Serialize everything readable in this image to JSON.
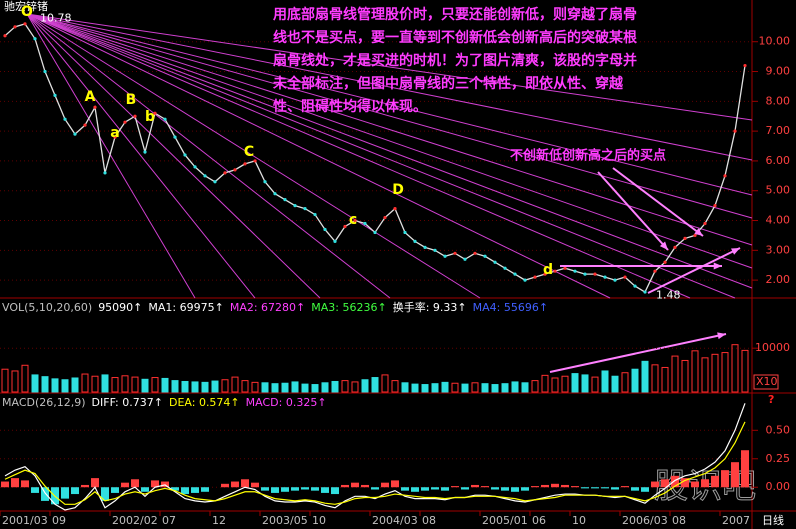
{
  "chart_data": [
    {
      "type": "line",
      "title": "驰宏锌锗",
      "color": "#e0e0e0",
      "categories": [
        "2001/03",
        null,
        null,
        null,
        null,
        "09",
        null,
        null,
        null,
        null,
        null,
        "2002/02",
        null,
        null,
        null,
        null,
        "07",
        null,
        null,
        null,
        null,
        "12",
        null,
        null,
        null,
        null,
        "2003/05",
        null,
        null,
        null,
        null,
        "10",
        null,
        null,
        null,
        null,
        null,
        "2004/03",
        null,
        null,
        null,
        null,
        "08",
        null,
        null,
        null,
        null,
        null,
        "2005/01",
        null,
        null,
        null,
        null,
        "06",
        null,
        null,
        null,
        "10",
        null,
        null,
        null,
        null,
        "2006/03",
        null,
        null,
        null,
        null,
        "08",
        null,
        null,
        null,
        null,
        "2007",
        null,
        null
      ],
      "values": [
        10.2,
        10.5,
        10.6,
        10.1,
        9.0,
        8.2,
        7.4,
        6.9,
        7.2,
        7.8,
        5.6,
        6.8,
        7.3,
        7.5,
        6.3,
        7.6,
        7.4,
        6.8,
        6.2,
        5.8,
        5.5,
        5.3,
        5.6,
        5.7,
        5.9,
        6.0,
        5.3,
        4.9,
        4.7,
        4.5,
        4.4,
        4.2,
        3.7,
        3.3,
        3.8,
        4.0,
        3.9,
        3.6,
        4.1,
        4.4,
        3.6,
        3.3,
        3.1,
        3.0,
        2.8,
        2.9,
        2.7,
        2.9,
        2.8,
        2.6,
        2.4,
        2.2,
        2.0,
        2.1,
        2.2,
        2.3,
        2.4,
        2.3,
        2.2,
        2.2,
        2.1,
        2.0,
        2.1,
        1.8,
        1.6,
        2.3,
        2.6,
        3.1,
        3.4,
        3.5,
        3.9,
        4.5,
        5.5,
        7.0,
        9.2
      ],
      "ylim": [
        1.4,
        11.4
      ],
      "yticks": [
        {
          "value": 2,
          "label": "2.00"
        },
        {
          "value": 3,
          "label": "3.00"
        },
        {
          "value": 4,
          "label": "4.00"
        },
        {
          "value": 5,
          "label": "5.00"
        },
        {
          "value": 6,
          "label": "6.00"
        },
        {
          "value": 7,
          "label": "7.00"
        },
        {
          "value": 8,
          "label": "8.00"
        },
        {
          "value": 9,
          "label": "9.00"
        },
        {
          "value": 10,
          "label": "10.00"
        }
      ],
      "high": 10.78,
      "low": 1.48,
      "annotations": [
        "O",
        "A",
        "a",
        "B",
        "b",
        "C",
        "c",
        "D",
        "d"
      ],
      "notes": [
        "用底部扇骨线管理股价时，只要还能创新低，则穿越了扇骨",
        "线也不是买点，要一直等到不创新低会创新高后的突破某根",
        "扇骨线处，才是买进的时机！为了图片清爽，该股的字母并",
        "未全部标注，但图中扇骨线的三个特性，即依从性、穿越",
        "性、阻碍性均得以体现。"
      ],
      "callout": "不创新低创新高之后的买点"
    },
    {
      "type": "bar",
      "legend": [
        {
          "text": "VOL(5,10,20,60)",
          "color": "#c0c0c0"
        },
        {
          "text": "95090↑",
          "color": "#ffffff"
        },
        {
          "text": "MA1: 69975↑",
          "color": "#ffffff"
        },
        {
          "text": "MA2: 67280↑",
          "color": "#ff40ff"
        },
        {
          "text": "MA3: 56236↑",
          "color": "#40ff40"
        },
        {
          "text": "换手率: 9.33↑",
          "color": "#ffffff"
        },
        {
          "text": "MA4: 55696↑",
          "color": "#4060ff"
        }
      ],
      "values": [
        5200,
        4800,
        6100,
        3900,
        3500,
        3000,
        2800,
        3200,
        4100,
        3600,
        3900,
        3300,
        3700,
        3400,
        2900,
        3300,
        3100,
        2600,
        2400,
        2300,
        2200,
        2500,
        2800,
        3400,
        2600,
        2200,
        2100,
        1900,
        2000,
        2300,
        1800,
        1700,
        2100,
        2400,
        2600,
        2300,
        2800,
        3300,
        3900,
        2600,
        2100,
        1800,
        1700,
        1900,
        2200,
        2000,
        1800,
        2100,
        1900,
        1700,
        1900,
        2300,
        2100,
        2600,
        3800,
        3200,
        3600,
        4200,
        3900,
        3400,
        4800,
        3600,
        4400,
        5200,
        7000,
        6200,
        5600,
        8200,
        7200,
        9400,
        7800,
        8600,
        9000,
        10800,
        9500
      ],
      "ylim": [
        0,
        21000
      ],
      "yticks": [
        10000
      ],
      "unit": "X10"
    },
    {
      "type": "macd",
      "legend": [
        {
          "text": "MACD(26,12,9)",
          "color": "#c0c0c0"
        },
        {
          "text": "DIFF: 0.737↑",
          "color": "#ffffff"
        },
        {
          "text": "DEA: 0.574↑",
          "color": "#ffff00"
        },
        {
          "text": "MACD: 0.325↑",
          "color": "#ff40ff"
        }
      ],
      "values": [
        0.05,
        0.08,
        0.06,
        -0.05,
        -0.12,
        -0.15,
        -0.1,
        -0.06,
        0.02,
        0.08,
        -0.12,
        -0.05,
        0.04,
        0.07,
        -0.04,
        0.06,
        0.05,
        -0.03,
        -0.06,
        -0.05,
        -0.04,
        0,
        0.03,
        0.05,
        0.07,
        0.04,
        -0.03,
        -0.05,
        -0.04,
        -0.03,
        -0.02,
        -0.03,
        -0.05,
        -0.06,
        0.02,
        0.04,
        0.02,
        -0.02,
        0.04,
        0.06,
        -0.03,
        -0.04,
        -0.03,
        -0.02,
        -0.03,
        0.01,
        -0.02,
        0.02,
        0.01,
        -0.02,
        -0.03,
        -0.04,
        -0.03,
        0.01,
        0.02,
        0.03,
        0.02,
        0.01,
        -0.01,
        -0.01,
        -0.01,
        -0.02,
        0.01,
        -0.03,
        -0.04,
        0.05,
        0.07,
        0.1,
        0.08,
        0.05,
        0.07,
        0.1,
        0.15,
        0.22,
        0.325
      ],
      "series": [
        {
          "name": "DIFF",
          "color": "#ffffff",
          "values": [
            0.1,
            0.15,
            0.18,
            0.1,
            -0.05,
            -0.15,
            -0.2,
            -0.18,
            -0.1,
            0,
            -0.18,
            -0.12,
            -0.04,
            0,
            -0.08,
            0,
            0.02,
            -0.04,
            -0.1,
            -0.12,
            -0.13,
            -0.12,
            -0.08,
            -0.04,
            0,
            -0.02,
            -0.08,
            -0.12,
            -0.13,
            -0.13,
            -0.12,
            -0.13,
            -0.16,
            -0.18,
            -0.12,
            -0.08,
            -0.08,
            -0.1,
            -0.06,
            -0.03,
            -0.08,
            -0.1,
            -0.1,
            -0.1,
            -0.11,
            -0.09,
            -0.09,
            -0.07,
            -0.07,
            -0.08,
            -0.1,
            -0.12,
            -0.13,
            -0.11,
            -0.09,
            -0.07,
            -0.06,
            -0.06,
            -0.07,
            -0.07,
            -0.08,
            -0.09,
            -0.08,
            -0.11,
            -0.14,
            -0.07,
            -0.01,
            0.06,
            0.1,
            0.12,
            0.16,
            0.22,
            0.32,
            0.5,
            0.737
          ]
        },
        {
          "name": "DEA",
          "color": "#ffff00",
          "values": [
            0.07,
            0.11,
            0.15,
            0.12,
            0.01,
            -0.08,
            -0.15,
            -0.15,
            -0.11,
            -0.04,
            -0.12,
            -0.1,
            -0.06,
            -0.04,
            -0.06,
            -0.03,
            -0.01,
            -0.03,
            -0.07,
            -0.1,
            -0.11,
            -0.12,
            -0.1,
            -0.07,
            -0.04,
            -0.04,
            -0.07,
            -0.1,
            -0.11,
            -0.12,
            -0.11,
            -0.12,
            -0.14,
            -0.15,
            -0.13,
            -0.1,
            -0.09,
            -0.09,
            -0.08,
            -0.06,
            -0.07,
            -0.08,
            -0.09,
            -0.09,
            -0.1,
            -0.09,
            -0.09,
            -0.08,
            -0.08,
            -0.08,
            -0.09,
            -0.1,
            -0.12,
            -0.11,
            -0.1,
            -0.09,
            -0.07,
            -0.07,
            -0.07,
            -0.07,
            -0.08,
            -0.08,
            -0.08,
            -0.1,
            -0.12,
            -0.09,
            -0.05,
            0.01,
            0.06,
            0.09,
            0.12,
            0.17,
            0.25,
            0.39,
            0.574
          ]
        }
      ],
      "ylim": [
        -0.2,
        0.81
      ],
      "yticks": [
        {
          "value": 0,
          "label": "0.00"
        },
        {
          "value": 0.25,
          "label": "0.25"
        },
        {
          "value": 0.5,
          "label": "0.50"
        }
      ]
    }
  ],
  "period": "日线",
  "watermark": "股识吧"
}
